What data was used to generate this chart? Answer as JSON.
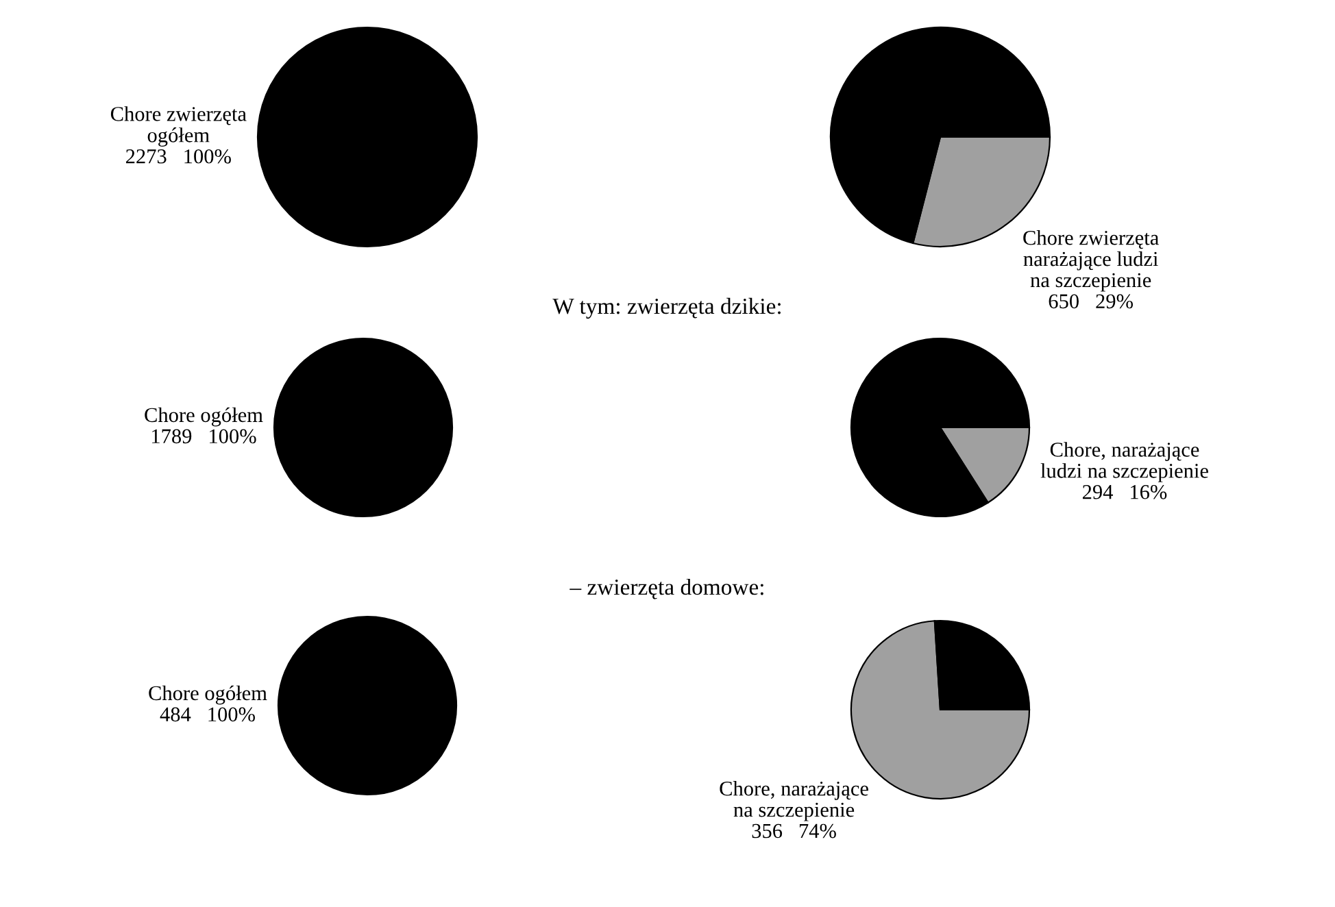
{
  "chart_data": [
    {
      "type": "pie",
      "categories": [
        "Chore zwierzęta\nogółem\n2273"
      ],
      "values": [
        100
      ],
      "value_labels": [
        "100%"
      ],
      "colors": [
        "#000000"
      ]
    },
    {
      "type": "pie",
      "categories": [
        "Chore zwierzęta\nnarażające ludzi\nna szczepienie\n650",
        null
      ],
      "values": [
        29,
        71
      ],
      "value_labels": [
        "29%",
        null
      ],
      "colors": [
        "#a0a0a0",
        "#000000"
      ]
    },
    {
      "type": "pie",
      "title": "W tym: zwierzęta dzikie:",
      "categories": [
        "Chore ogółem\n1789"
      ],
      "values": [
        100
      ],
      "value_labels": [
        "100%"
      ],
      "colors": [
        "#000000"
      ]
    },
    {
      "type": "pie",
      "categories": [
        "Chore, narażające\nludzi na szczepienie\n294",
        null
      ],
      "values": [
        16,
        84
      ],
      "value_labels": [
        "16%",
        null
      ],
      "colors": [
        "#a0a0a0",
        "#000000"
      ]
    },
    {
      "type": "pie",
      "title": "– zwierzęta domowe:",
      "categories": [
        "Chore ogółem\n484"
      ],
      "values": [
        100
      ],
      "value_labels": [
        "100%"
      ],
      "colors": [
        "#000000"
      ]
    },
    {
      "type": "pie",
      "categories": [
        "Chore, narażające\nna szczepienie\n356",
        null
      ],
      "values": [
        74,
        26
      ],
      "value_labels": [
        "74%",
        null
      ],
      "colors": [
        "#a0a0a0",
        "#000000"
      ]
    }
  ]
}
